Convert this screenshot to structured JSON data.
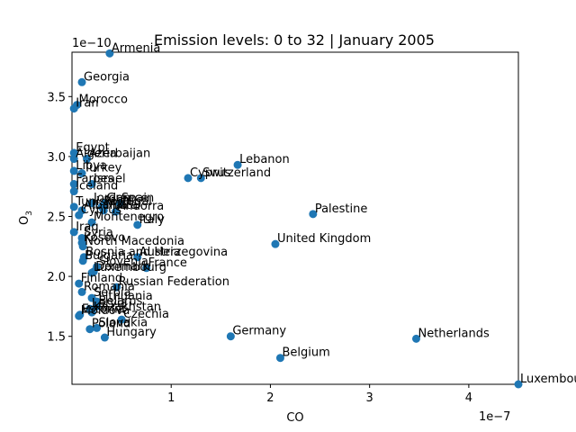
{
  "chart_data": {
    "type": "scatter",
    "title": "Emission levels: 0 to 32 | January 2005",
    "xlabel": "CO",
    "ylabel": "O",
    "ylabel_sub": "3",
    "x_offset_text": "1e−7",
    "y_offset_text": "1e−10",
    "xlim": [
      0,
      4.5
    ],
    "ylim": [
      1.1,
      3.87
    ],
    "xticks": [
      1,
      2,
      3,
      4
    ],
    "yticks": [
      1.5,
      2.0,
      2.5,
      3.0,
      3.5
    ],
    "xtick_labels": [
      "1",
      "2",
      "3",
      "4"
    ],
    "ytick_labels": [
      "1.5",
      "2.0",
      "2.5",
      "3.0",
      "3.5"
    ],
    "grid": false,
    "point_color": "#1f77b4",
    "points": [
      {
        "label": "Armenia",
        "x": 0.38,
        "y": 3.86
      },
      {
        "label": "Georgia",
        "x": 0.1,
        "y": 3.62
      },
      {
        "label": "Morocco",
        "x": 0.05,
        "y": 3.43
      },
      {
        "label": "Iran",
        "x": 0.02,
        "y": 3.4
      },
      {
        "label": "Egypt",
        "x": 0.02,
        "y": 3.03
      },
      {
        "label": "Algeria",
        "x": 0.02,
        "y": 2.98
      },
      {
        "label": "Azerbaijan",
        "x": 0.15,
        "y": 2.98
      },
      {
        "label": "Libya",
        "x": 0.02,
        "y": 2.88
      },
      {
        "label": "Turkey",
        "x": 0.1,
        "y": 2.86
      },
      {
        "label": "Faroes",
        "x": 0.02,
        "y": 2.77
      },
      {
        "label": "Israel",
        "x": 0.2,
        "y": 2.77
      },
      {
        "label": "Iceland",
        "x": 0.02,
        "y": 2.71
      },
      {
        "label": "Jordan",
        "x": 0.2,
        "y": 2.61
      },
      {
        "label": "Greece",
        "x": 0.33,
        "y": 2.61
      },
      {
        "label": "Spain",
        "x": 0.48,
        "y": 2.61
      },
      {
        "label": "Tunisia",
        "x": 0.02,
        "y": 2.58
      },
      {
        "label": "Portugal",
        "x": 0.3,
        "y": 2.58
      },
      {
        "label": "Albania",
        "x": 0.1,
        "y": 2.55
      },
      {
        "label": "Malta",
        "x": 0.32,
        "y": 2.55
      },
      {
        "label": "Andorra",
        "x": 0.44,
        "y": 2.54
      },
      {
        "label": "Cyprus",
        "x": 0.07,
        "y": 2.51
      },
      {
        "label": "Montenegro",
        "x": 0.2,
        "y": 2.45
      },
      {
        "label": "Italy",
        "x": 0.66,
        "y": 2.43
      },
      {
        "label": "Iraq",
        "x": 0.02,
        "y": 2.37
      },
      {
        "label": "Syria",
        "x": 0.1,
        "y": 2.32
      },
      {
        "label": "Kosovo",
        "x": 0.1,
        "y": 2.28
      },
      {
        "label": "North Macedonia",
        "x": 0.11,
        "y": 2.25
      },
      {
        "label": "Bosnia and Herzegovina",
        "x": 0.12,
        "y": 2.16
      },
      {
        "label": "Austria",
        "x": 0.66,
        "y": 2.16
      },
      {
        "label": "Bulgaria",
        "x": 0.11,
        "y": 2.13
      },
      {
        "label": "Slovenia",
        "x": 0.25,
        "y": 2.08
      },
      {
        "label": "France",
        "x": 0.75,
        "y": 2.07
      },
      {
        "label": "Denmark",
        "x": 0.22,
        "y": 2.04
      },
      {
        "label": "Luxembourg",
        "x": 0.2,
        "y": 2.03
      },
      {
        "label": "Finland",
        "x": 0.07,
        "y": 1.94
      },
      {
        "label": "Russian Federation",
        "x": 0.45,
        "y": 1.91
      },
      {
        "label": "Romania",
        "x": 0.1,
        "y": 1.87
      },
      {
        "label": "Serbia",
        "x": 0.2,
        "y": 1.82
      },
      {
        "label": "Lithuania",
        "x": 0.25,
        "y": 1.79
      },
      {
        "label": "Belarus",
        "x": 0.25,
        "y": 1.75
      },
      {
        "label": "Latvia",
        "x": 0.18,
        "y": 1.73
      },
      {
        "label": "Kazakhstan",
        "x": 0.2,
        "y": 1.7
      },
      {
        "label": "Estonia",
        "x": 0.08,
        "y": 1.68
      },
      {
        "label": "Moldova",
        "x": 0.07,
        "y": 1.67
      },
      {
        "label": "Czechia",
        "x": 0.5,
        "y": 1.64
      },
      {
        "label": "Slovakia",
        "x": 0.25,
        "y": 1.57
      },
      {
        "label": "Poland",
        "x": 0.18,
        "y": 1.56
      },
      {
        "label": "Hungary",
        "x": 0.33,
        "y": 1.49
      },
      {
        "label": "Cyprus",
        "x": 1.17,
        "y": 2.82
      },
      {
        "label": "Switzerland",
        "x": 1.3,
        "y": 2.82
      },
      {
        "label": "Lebanon",
        "x": 1.67,
        "y": 2.93
      },
      {
        "label": "Palestine",
        "x": 2.43,
        "y": 2.52
      },
      {
        "label": "United Kingdom",
        "x": 2.05,
        "y": 2.27
      },
      {
        "label": "Germany",
        "x": 1.6,
        "y": 1.5
      },
      {
        "label": "Belgium",
        "x": 2.1,
        "y": 1.32
      },
      {
        "label": "Netherlands",
        "x": 3.47,
        "y": 1.48
      },
      {
        "label": "Luxembourg",
        "x": 4.5,
        "y": 1.1
      }
    ]
  }
}
